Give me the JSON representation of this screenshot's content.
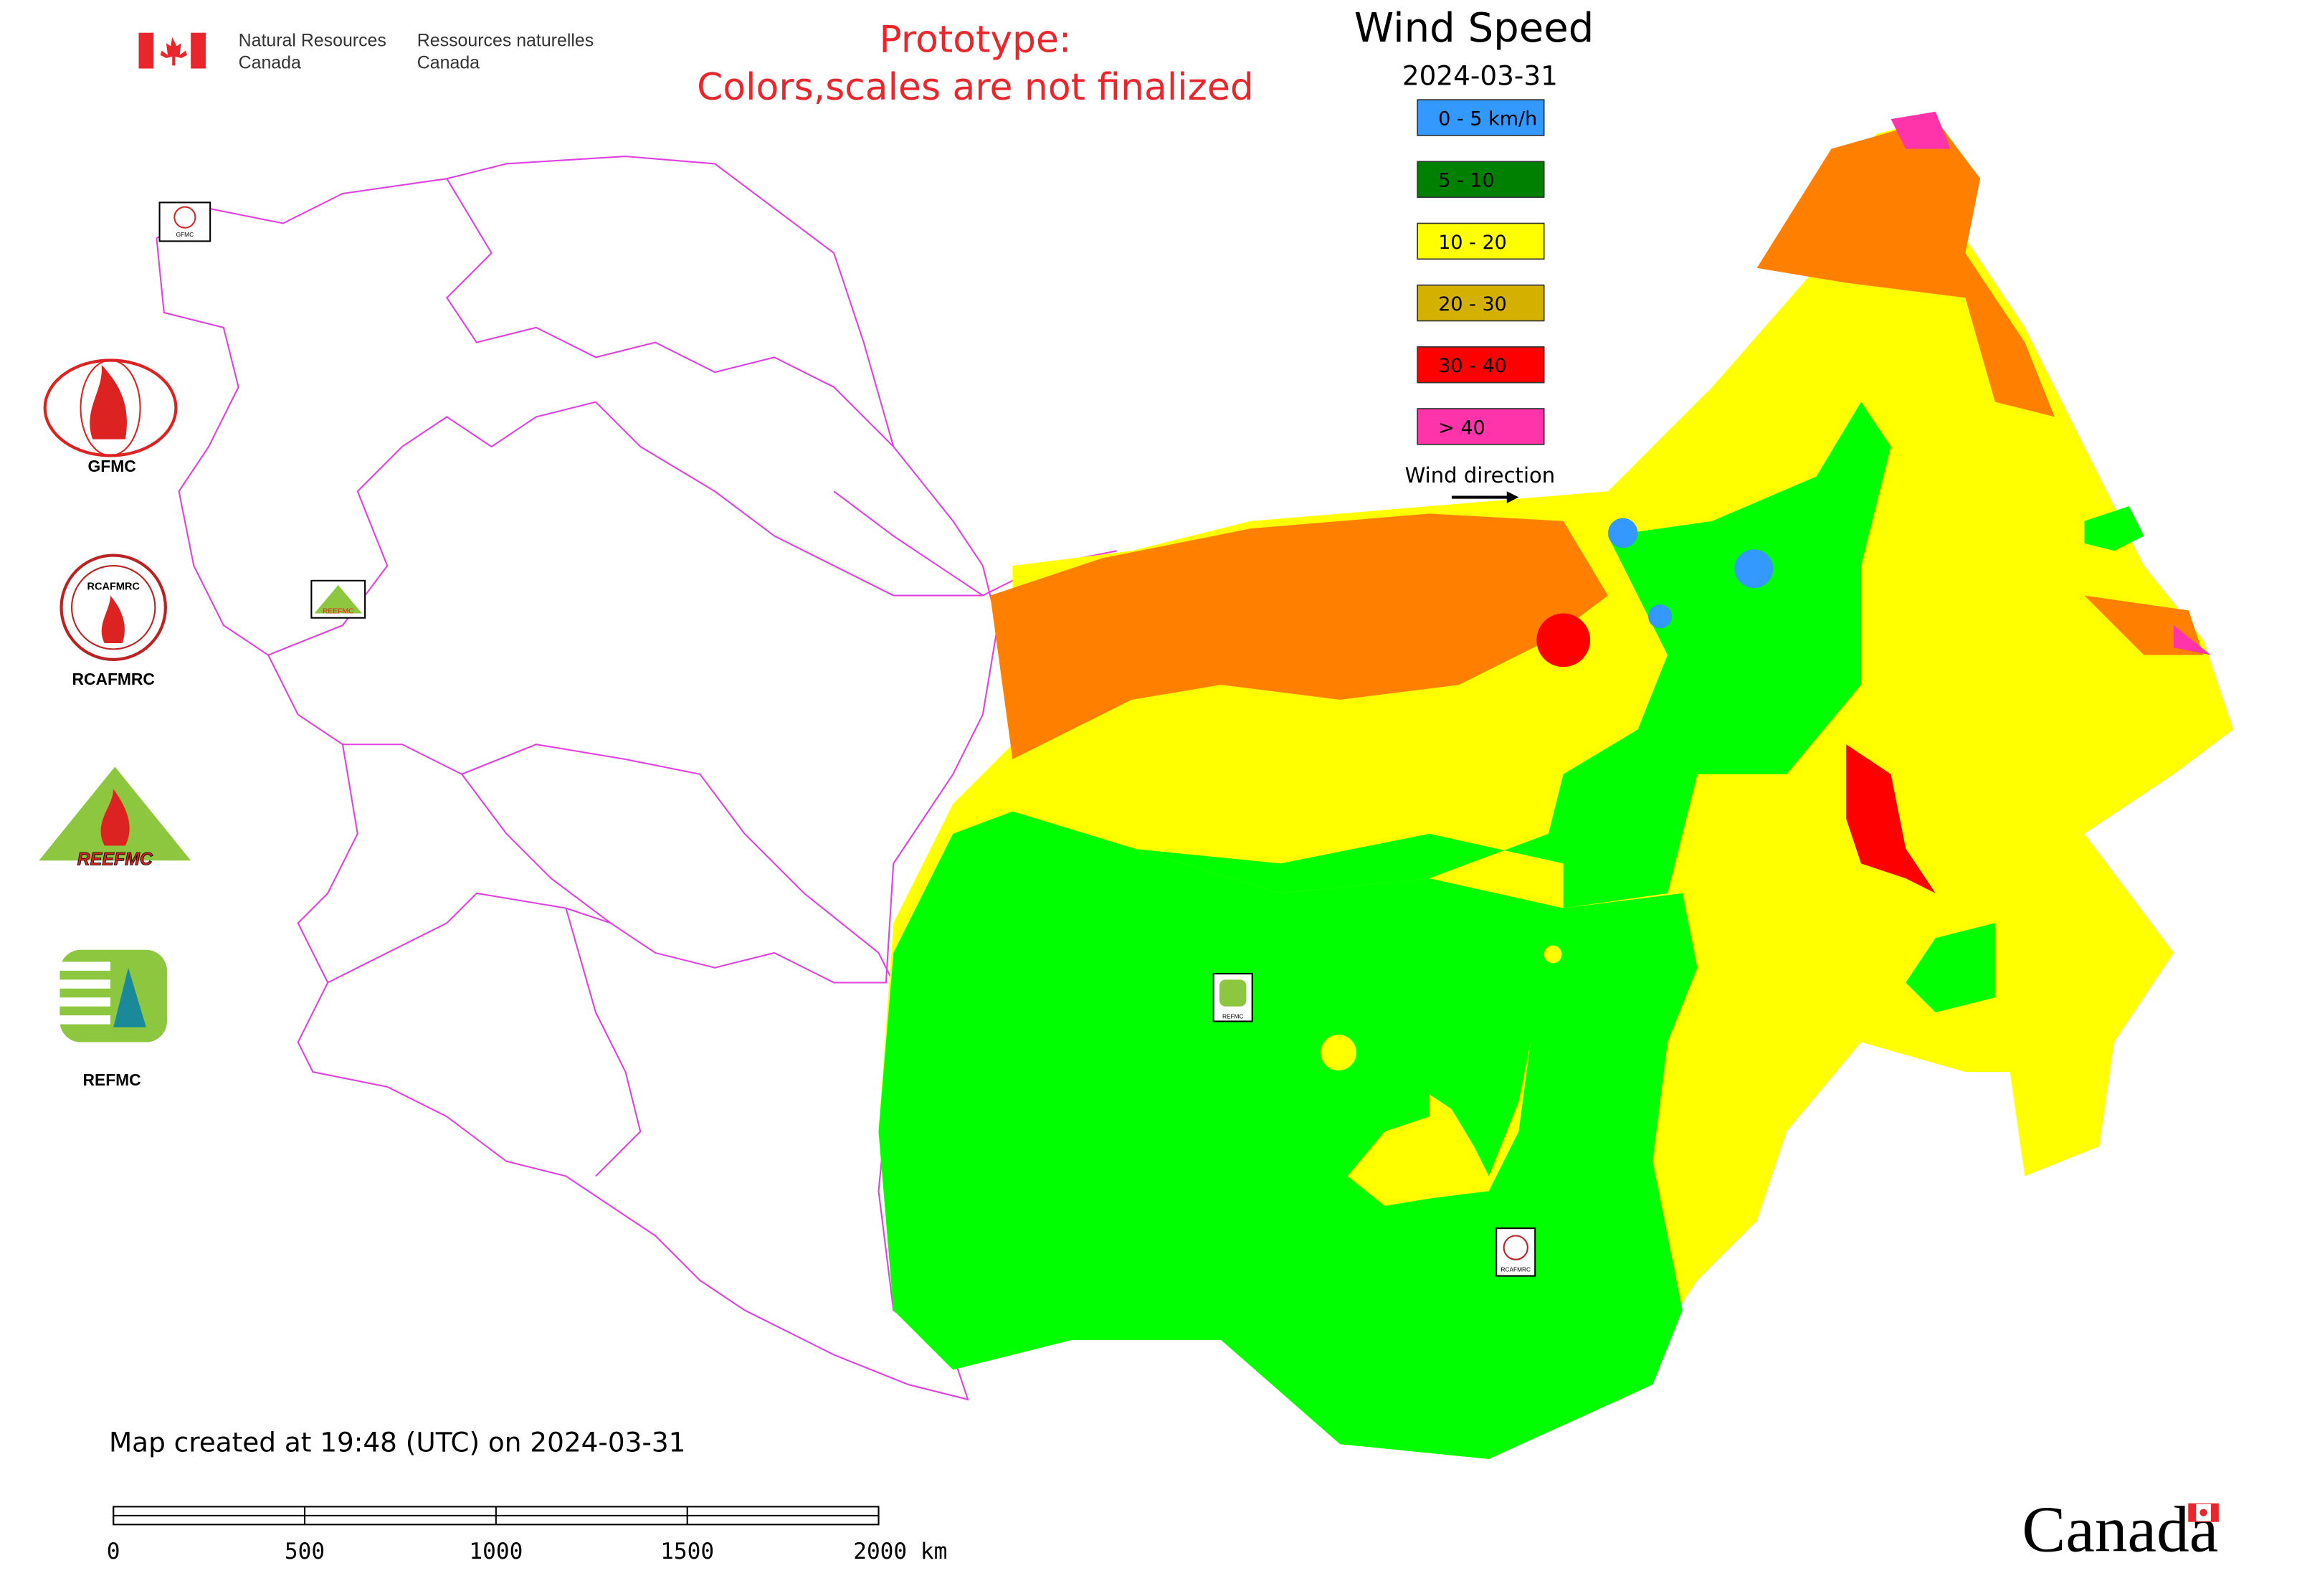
{
  "header": {
    "department_en": [
      "Natural Resources",
      "Canada"
    ],
    "department_fr": [
      "Ressources naturelles",
      "Canada"
    ]
  },
  "notice": [
    "Prototype:",
    "Colors,scales are not finalized"
  ],
  "legend": {
    "title": "Wind Speed",
    "date": "2024-03-31",
    "items": [
      {
        "label": "0 - 5 km/h",
        "color": "#3399ff"
      },
      {
        "label": "5 - 10",
        "color": "#008000"
      },
      {
        "label": "10 - 20",
        "color": "#ffff00"
      },
      {
        "label": "20 - 30",
        "color": "#d4b000"
      },
      {
        "label": "30 - 40",
        "color": "#ff0000"
      },
      {
        "label": "> 40",
        "color": "#ff33aa"
      }
    ],
    "wind_direction": "Wind direction"
  },
  "logos": [
    "GFMC",
    "RCAFMRC",
    "REFMC"
  ],
  "logo_texts": {
    "reefmc": "REEFMC",
    "rcafmrc": "RCAFMRC"
  },
  "map_markers": [
    "GFMC",
    "REEFMC",
    "REFMC",
    "RCAFMRC"
  ],
  "footer": {
    "created": "Map created at 19:48 (UTC) on 2024-03-31",
    "scale_ticks": [
      0,
      500,
      1000,
      1500,
      {
        "value": 2000,
        "label": "2000 km"
      }
    ],
    "wordmark": "Canada"
  }
}
